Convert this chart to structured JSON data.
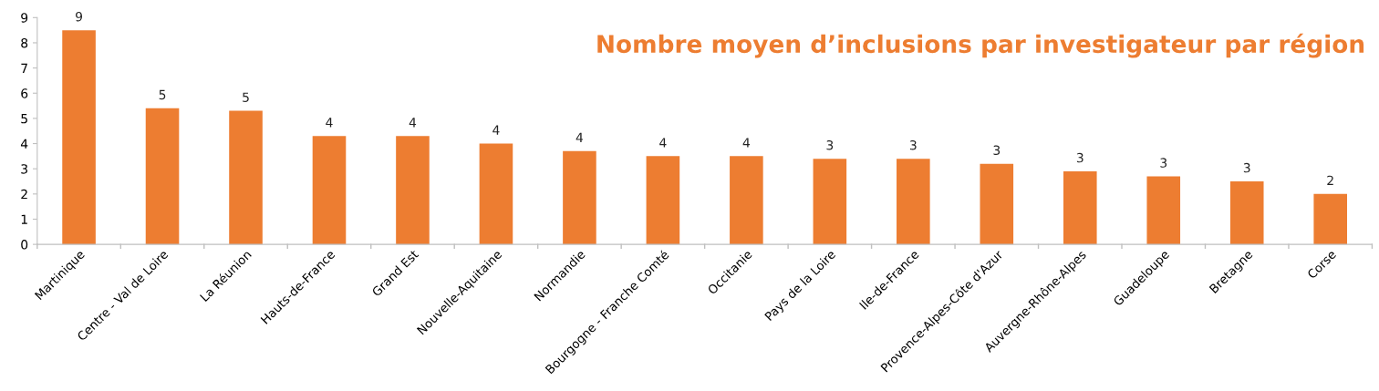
{
  "chart_data": {
    "type": "bar",
    "title": "Nombre moyen d’inclusions par investigateur par région",
    "categories": [
      "Martinique",
      "Centre - Val de Loire",
      "La Réunion",
      "Hauts-de-France",
      "Grand Est",
      "Nouvelle-Aquitaine",
      "Normandie",
      "Bourgogne - Franche Comté",
      "Occitanie",
      "Pays de la Loire",
      "Ile-de-France",
      "Provence-Alpes-Côte d'Azur",
      "Auvergne-Rhône-Alpes",
      "Guadeloupe",
      "Bretagne",
      "Corse"
    ],
    "values": [
      8.5,
      5.4,
      5.3,
      4.3,
      4.3,
      4.0,
      3.7,
      3.5,
      3.5,
      3.4,
      3.4,
      3.2,
      2.9,
      2.7,
      2.5,
      2.0
    ],
    "value_labels": [
      "9",
      "5",
      "5",
      "4",
      "4",
      "4",
      "4",
      "4",
      "4",
      "3",
      "3",
      "3",
      "3",
      "3",
      "3",
      "2"
    ],
    "color": "#ed7d31",
    "ylim": [
      0,
      9
    ],
    "yticks": [
      0,
      1,
      2,
      3,
      4,
      5,
      6,
      7,
      8,
      9
    ],
    "grid": false,
    "legend": false
  }
}
